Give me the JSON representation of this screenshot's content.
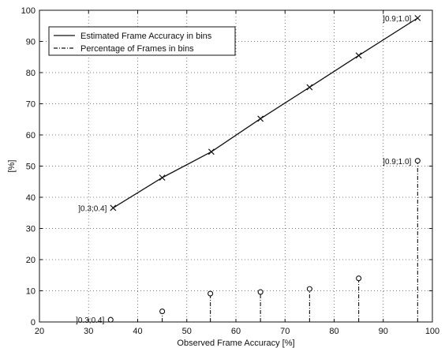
{
  "chart_data": {
    "type": "line",
    "title": "",
    "xlabel": "Observed Frame Accuracy [%]",
    "ylabel": "[%]",
    "xlim": [
      20,
      100
    ],
    "ylim": [
      0,
      100
    ],
    "xticks": [
      20,
      30,
      40,
      50,
      60,
      70,
      80,
      90,
      100
    ],
    "yticks": [
      0,
      10,
      20,
      30,
      40,
      50,
      60,
      70,
      80,
      90,
      100
    ],
    "grid": true,
    "legend_position": "top-left",
    "series": [
      {
        "name": "Estimated Frame Accuracy in bins",
        "style": "solid line with x markers",
        "x": [
          35,
          45,
          55,
          65,
          75,
          85,
          97
        ],
        "y": [
          36.6,
          46.3,
          54.6,
          65.2,
          75.3,
          85.5,
          97.5
        ]
      },
      {
        "name": "Percentage of Frames in bins",
        "style": "dash-dot stems with circle markers",
        "x": [
          34.5,
          45,
          54.8,
          65,
          75,
          85,
          97
        ],
        "y": [
          0.7,
          3.4,
          9.1,
          9.6,
          10.6,
          14.0,
          51.7
        ]
      }
    ],
    "annotations": [
      {
        "text": "]0.3;0.4]",
        "x": 35,
        "y": 36.6,
        "anchor": "left"
      },
      {
        "text": "]0.9;1.0]",
        "x": 97,
        "y": 97.5,
        "anchor": "left"
      },
      {
        "text": "]0.3;0.4]",
        "x": 34.5,
        "y": 0.7,
        "anchor": "left"
      },
      {
        "text": "]0.9;1.0]",
        "x": 97,
        "y": 51.7,
        "anchor": "left"
      }
    ]
  },
  "colors": {
    "line": "#111111",
    "grid": "#555555",
    "background": "#ffffff"
  }
}
